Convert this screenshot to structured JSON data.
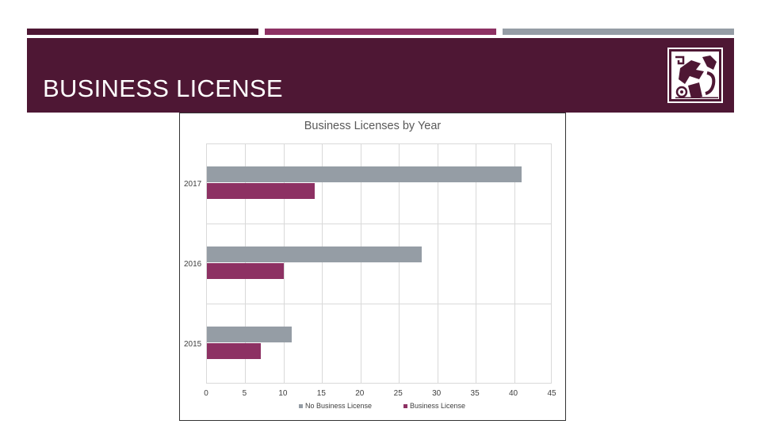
{
  "slide": {
    "title": "BUSINESS LICENSE",
    "colors": {
      "header_bg": "#4e1734",
      "stripe_1": "#4e1734",
      "stripe_2": "#8d3163",
      "stripe_3": "#959da5",
      "series_no_license": "#959da5",
      "series_license": "#8d3163"
    },
    "logo_icon": "decorative-tribal-logo-icon"
  },
  "chart_data": {
    "type": "bar",
    "orientation": "horizontal",
    "title": "Business Licenses by Year",
    "categories": [
      "2015",
      "2016",
      "2017"
    ],
    "series": [
      {
        "name": "No Business License",
        "color": "#959da5",
        "values": [
          11,
          28,
          41
        ]
      },
      {
        "name": "Business License",
        "color": "#8d3163",
        "values": [
          7,
          10,
          14
        ]
      }
    ],
    "xlabel": "",
    "ylabel": "",
    "xlim": [
      0,
      45
    ],
    "x_ticks": [
      "0",
      "5",
      "10",
      "15",
      "20",
      "25",
      "30",
      "35",
      "40",
      "45"
    ],
    "grid": true,
    "legend_position": "bottom"
  }
}
